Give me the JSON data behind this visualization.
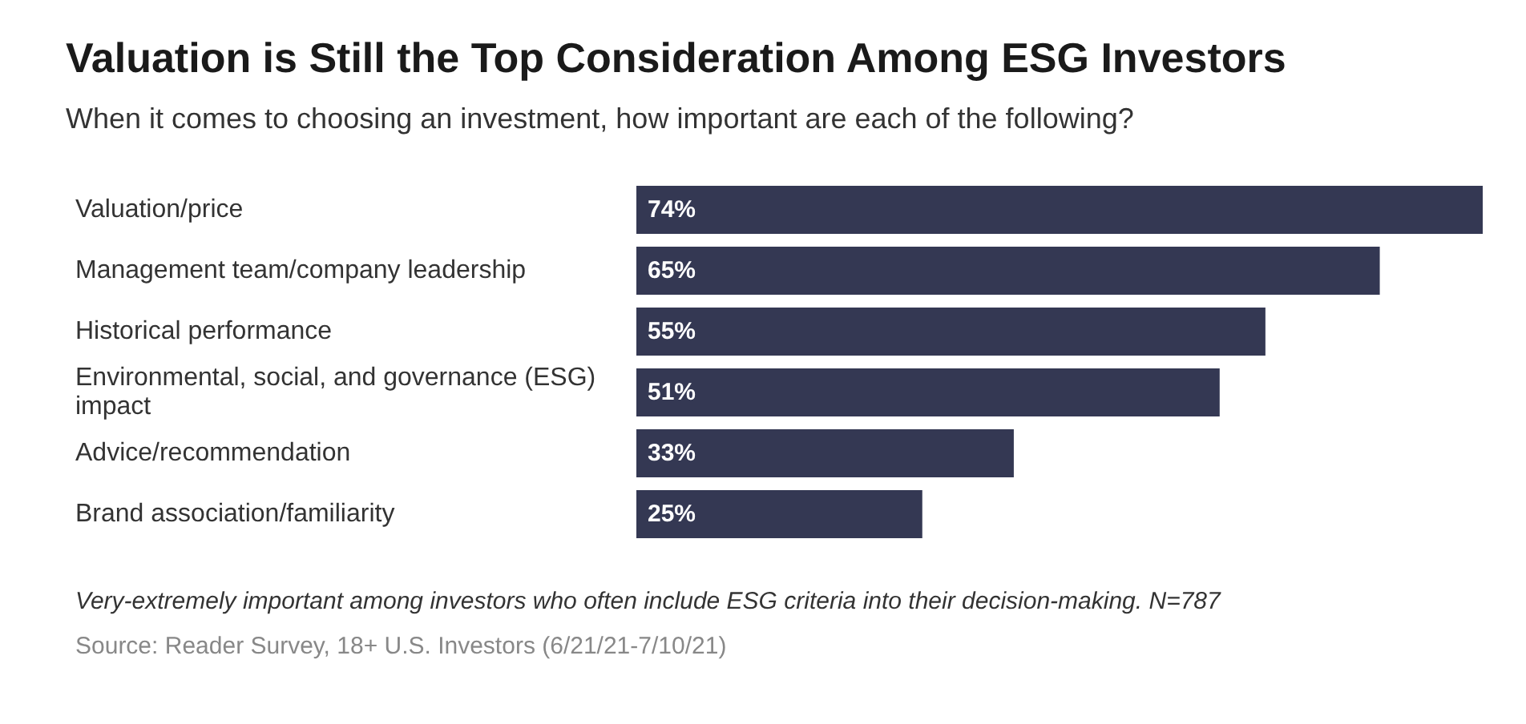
{
  "chart_data": {
    "type": "bar",
    "orientation": "horizontal",
    "title": "Valuation is Still the Top Consideration Among ESG Investors",
    "subtitle": "When it comes to choosing an investment, how important are each of the following?",
    "categories": [
      "Valuation/price",
      "Management team/company leadership",
      "Historical performance",
      "Environmental, social, and governance (ESG) impact",
      "Advice/recommendation",
      "Brand association/familiarity"
    ],
    "values": [
      74,
      65,
      55,
      51,
      33,
      25
    ],
    "value_labels": [
      "74%",
      "65%",
      "55%",
      "51%",
      "33%",
      "25%"
    ],
    "color": "#343853",
    "annotations": [
      "Very-extremely important among investors who often include ESG criteria into their decision-making. N=787",
      "Source: Reader Survey, 18+ U.S. Investors (6/21/21-7/10/21)"
    ]
  }
}
